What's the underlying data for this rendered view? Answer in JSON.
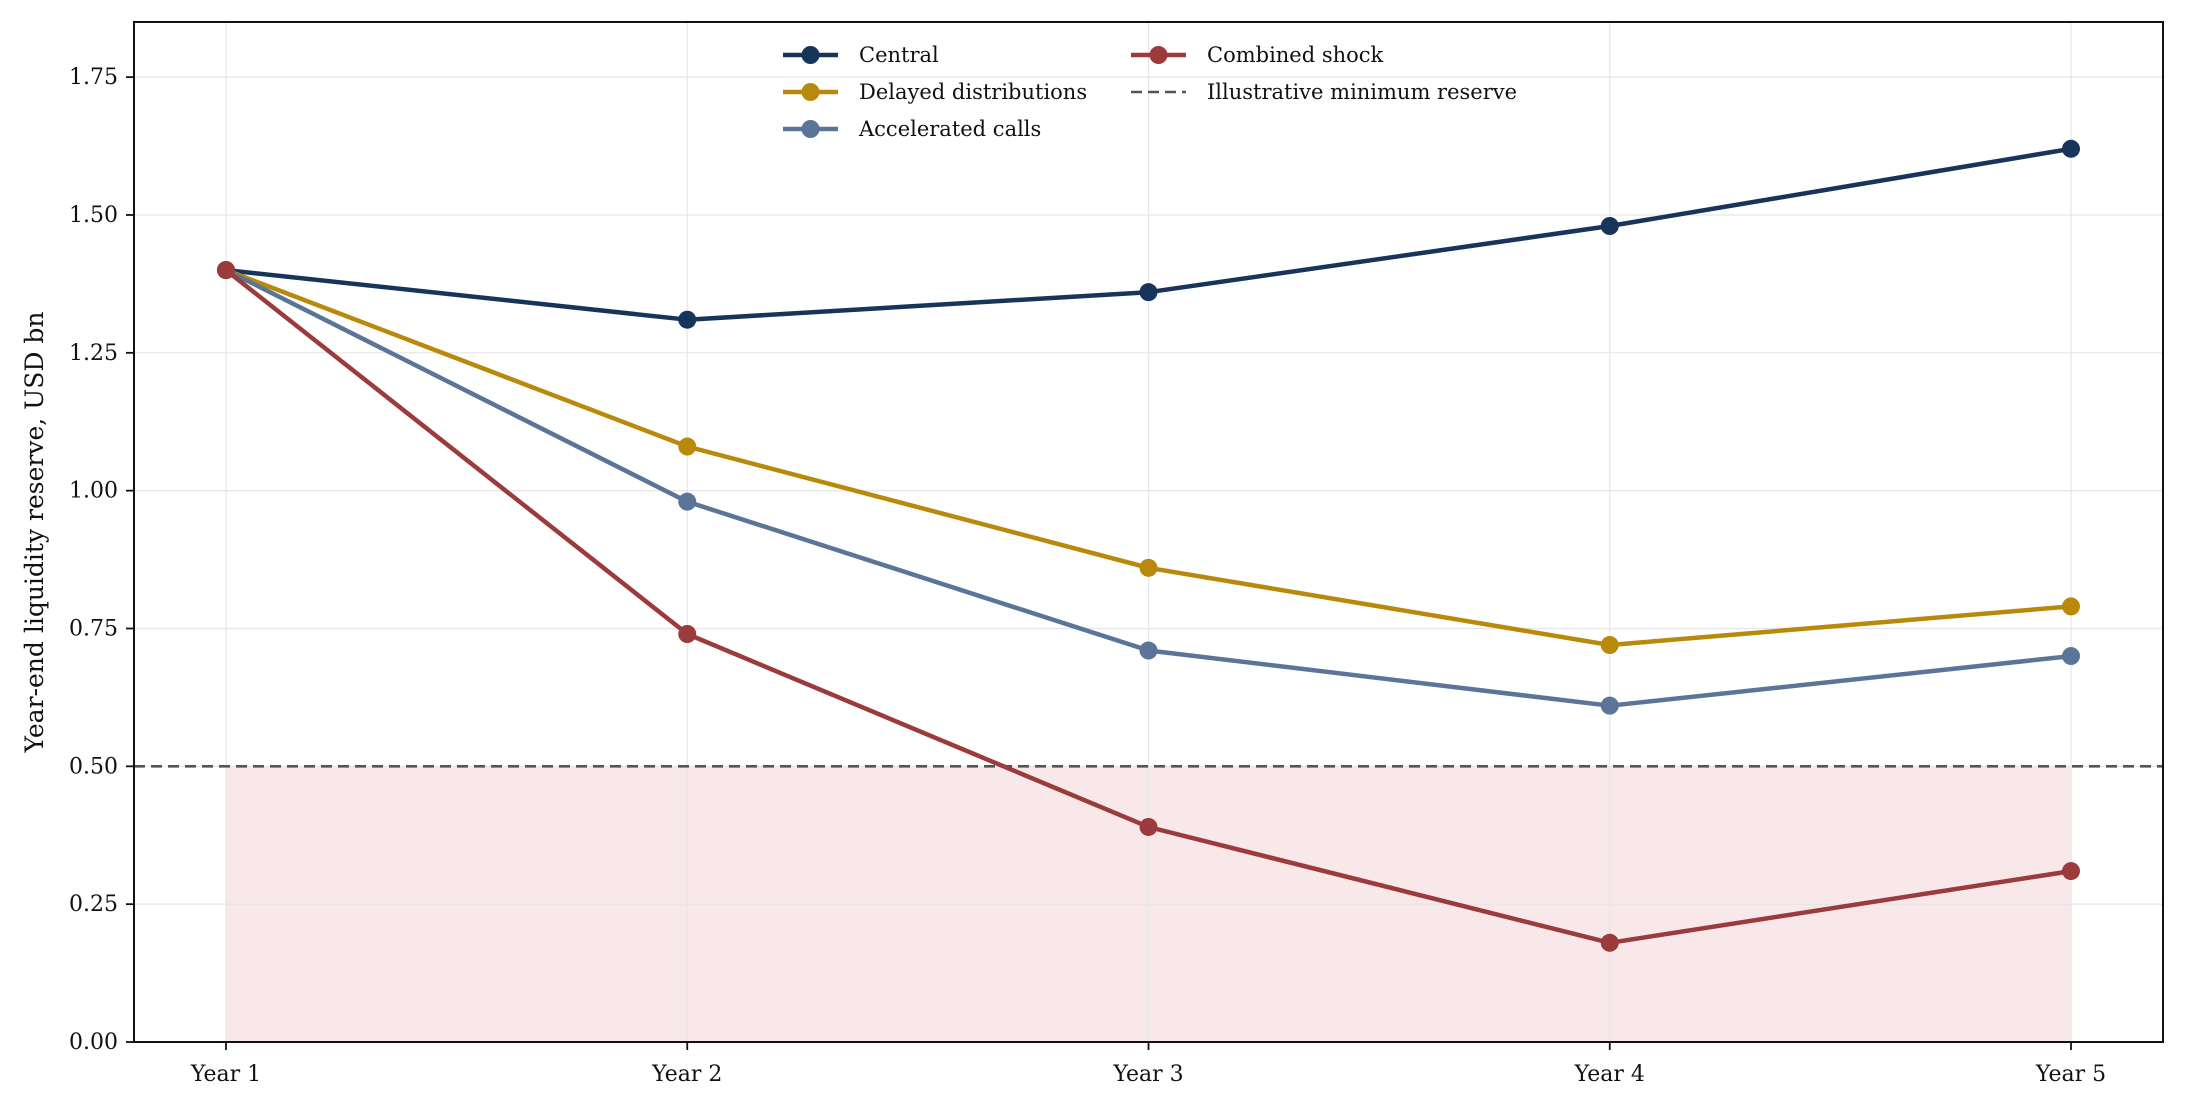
{
  "chart_data": {
    "type": "line",
    "title": "",
    "xlabel": "",
    "ylabel": "Year-end liquidity reserve, USD bn",
    "categories": [
      "Year 1",
      "Year 2",
      "Year 3",
      "Year 4",
      "Year 5"
    ],
    "ylim": [
      0,
      1.85
    ],
    "yticks": [
      "0.00",
      "0.25",
      "0.50",
      "0.75",
      "1.00",
      "1.25",
      "1.50",
      "1.75"
    ],
    "grid": true,
    "legend_position": "top-center",
    "series": [
      {
        "name": "Central",
        "color": "#17355a",
        "values": [
          1.4,
          1.31,
          1.36,
          1.48,
          1.62
        ]
      },
      {
        "name": "Delayed distributions",
        "color": "#b8890b",
        "values": [
          1.4,
          1.08,
          0.86,
          0.72,
          0.79
        ]
      },
      {
        "name": "Accelerated calls",
        "color": "#5b7599",
        "values": [
          1.4,
          0.98,
          0.71,
          0.61,
          0.7
        ]
      },
      {
        "name": "Combined shock",
        "color": "#9b3b3b",
        "values": [
          1.4,
          0.74,
          0.39,
          0.18,
          0.31
        ]
      }
    ],
    "reference_line": {
      "name": "Illustrative minimum reserve",
      "value": 0.5,
      "color": "#555555",
      "style": "dashed"
    },
    "shaded_region": {
      "from": 0,
      "to": 0.5,
      "color": "#f8e8e9"
    }
  }
}
